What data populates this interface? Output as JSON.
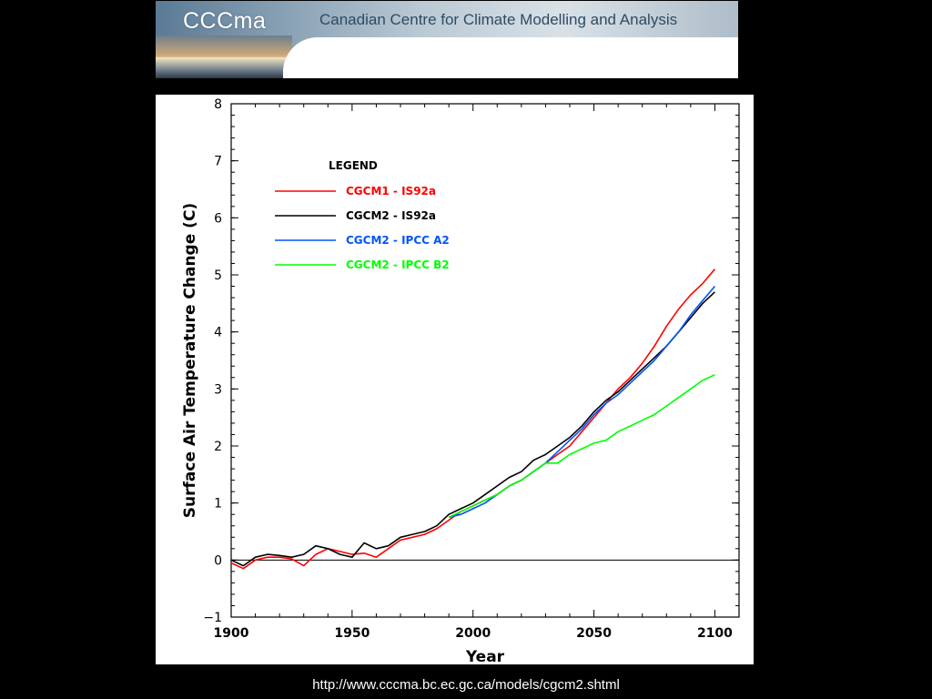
{
  "banner": {
    "brand": "CCCma",
    "org_name": "Canadian Centre for Climate Modelling and Analysis"
  },
  "source_url": "http://www.cccma.bc.ec.gc.ca/models/cgcm2.shtml",
  "chart_data": {
    "type": "line",
    "title": "",
    "xlabel": "Year",
    "ylabel": "Surface Air Temperature Change (C)",
    "xlim": [
      1900,
      2110
    ],
    "ylim": [
      -1,
      8
    ],
    "x_ticks": [
      1900,
      1950,
      2000,
      2050,
      2100
    ],
    "y_ticks": [
      -1,
      0,
      1,
      2,
      3,
      4,
      5,
      6,
      7,
      8
    ],
    "zero_line": true,
    "grid": false,
    "legend": {
      "title": "LEGEND",
      "placement": "top-left",
      "entries": [
        "CGCM1 - IS92a",
        "CGCM2 - IS92a",
        "CGCM2 - IPCC A2",
        "CGCM2 - IPCC B2"
      ]
    },
    "series": [
      {
        "name": "CGCM1 - IS92a",
        "color": "#ff0000",
        "x": [
          1900,
          1905,
          1910,
          1915,
          1920,
          1925,
          1930,
          1935,
          1940,
          1945,
          1950,
          1955,
          1960,
          1965,
          1970,
          1975,
          1980,
          1985,
          1990,
          1995,
          2000,
          2005,
          2010,
          2015,
          2020,
          2025,
          2030,
          2035,
          2040,
          2045,
          2050,
          2055,
          2060,
          2065,
          2070,
          2075,
          2080,
          2085,
          2090,
          2095,
          2100
        ],
        "values": [
          -0.05,
          -0.15,
          0.0,
          0.05,
          0.05,
          0.02,
          -0.1,
          0.1,
          0.2,
          0.15,
          0.1,
          0.12,
          0.05,
          0.2,
          0.35,
          0.4,
          0.45,
          0.55,
          0.7,
          0.85,
          0.95,
          1.05,
          1.15,
          1.3,
          1.4,
          1.55,
          1.7,
          1.85,
          2.0,
          2.25,
          2.5,
          2.75,
          3.0,
          3.2,
          3.45,
          3.75,
          4.1,
          4.4,
          4.65,
          4.85,
          5.1
        ]
      },
      {
        "name": "CGCM2 - IS92a",
        "color": "#000000",
        "x": [
          1900,
          1905,
          1910,
          1915,
          1920,
          1925,
          1930,
          1935,
          1940,
          1945,
          1950,
          1955,
          1960,
          1965,
          1970,
          1975,
          1980,
          1985,
          1990,
          1995,
          2000,
          2005,
          2010,
          2015,
          2020,
          2025,
          2030,
          2035,
          2040,
          2045,
          2050,
          2055,
          2060,
          2065,
          2070,
          2075,
          2080,
          2085,
          2090,
          2095,
          2100
        ],
        "values": [
          0.0,
          -0.1,
          0.05,
          0.1,
          0.08,
          0.05,
          0.1,
          0.25,
          0.2,
          0.1,
          0.05,
          0.3,
          0.2,
          0.25,
          0.4,
          0.45,
          0.5,
          0.6,
          0.8,
          0.9,
          1.0,
          1.15,
          1.3,
          1.45,
          1.55,
          1.75,
          1.85,
          2.0,
          2.15,
          2.35,
          2.6,
          2.8,
          2.95,
          3.15,
          3.35,
          3.55,
          3.75,
          4.0,
          4.25,
          4.5,
          4.7
        ]
      },
      {
        "name": "CGCM2 - IPCC A2",
        "color": "#0055ff",
        "x": [
          1990,
          1995,
          2000,
          2005,
          2010,
          2015,
          2020,
          2025,
          2030,
          2035,
          2040,
          2045,
          2050,
          2055,
          2060,
          2065,
          2070,
          2075,
          2080,
          2085,
          2090,
          2095,
          2100
        ],
        "values": [
          0.75,
          0.8,
          0.9,
          1.0,
          1.15,
          1.3,
          1.4,
          1.55,
          1.7,
          1.9,
          2.1,
          2.3,
          2.55,
          2.75,
          2.9,
          3.1,
          3.3,
          3.5,
          3.75,
          4.0,
          4.3,
          4.55,
          4.8
        ]
      },
      {
        "name": "CGCM2 - IPCC B2",
        "color": "#00ff00",
        "x": [
          1990,
          1995,
          2000,
          2005,
          2010,
          2015,
          2020,
          2025,
          2030,
          2035,
          2040,
          2045,
          2050,
          2055,
          2060,
          2065,
          2070,
          2075,
          2080,
          2085,
          2090,
          2095,
          2100
        ],
        "values": [
          0.75,
          0.85,
          0.95,
          1.05,
          1.15,
          1.3,
          1.4,
          1.55,
          1.7,
          1.7,
          1.85,
          1.95,
          2.05,
          2.1,
          2.25,
          2.35,
          2.45,
          2.55,
          2.7,
          2.85,
          3.0,
          3.15,
          3.25
        ]
      }
    ]
  }
}
